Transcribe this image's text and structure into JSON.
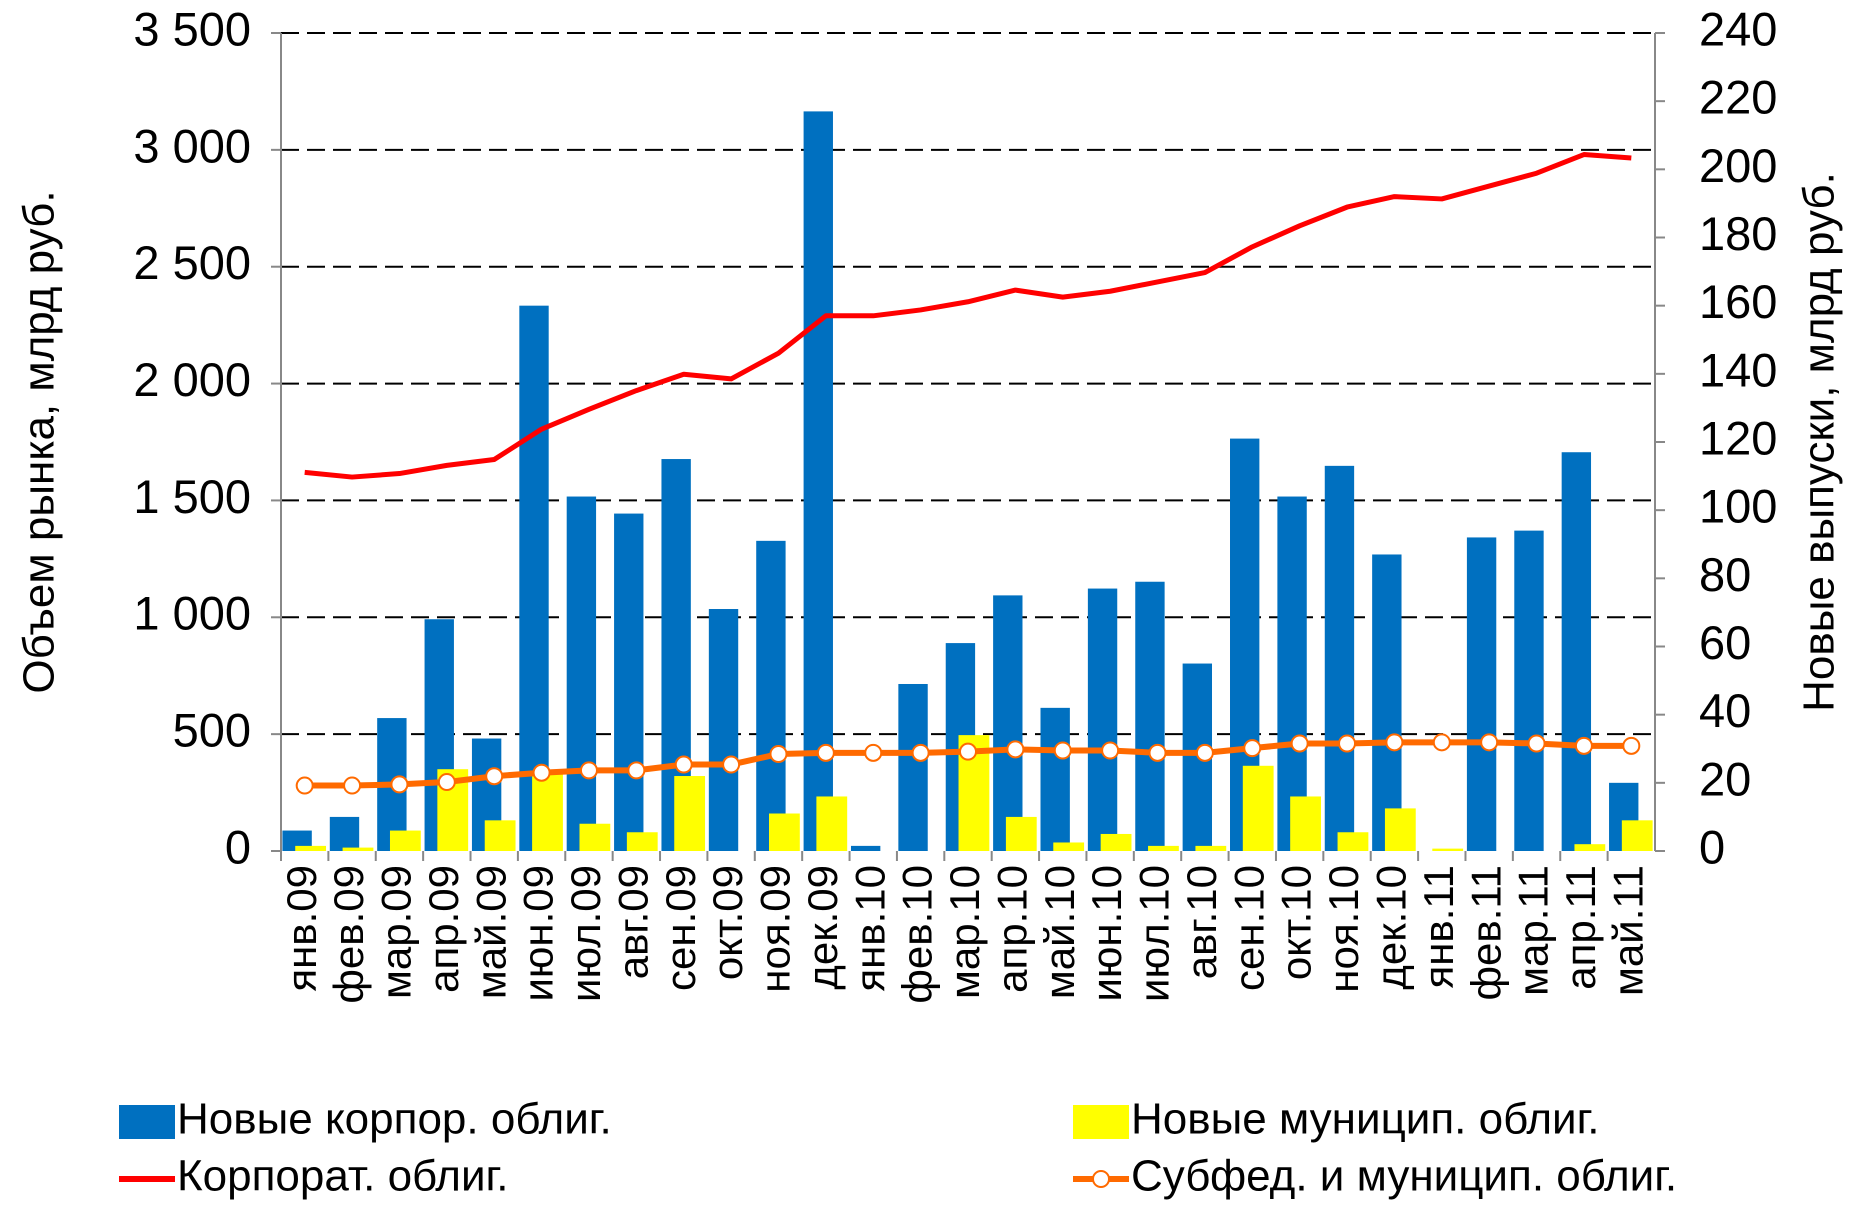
{
  "chart_data": {
    "type": "bar_line",
    "categories": [
      "янв.09",
      "фев.09",
      "мар.09",
      "апр.09",
      "май.09",
      "июн.09",
      "июл.09",
      "авг.09",
      "сен.09",
      "окт.09",
      "ноя.09",
      "дек.09",
      "янв.10",
      "фев.10",
      "мар.10",
      "апр.10",
      "май.10",
      "июн.10",
      "июл.10",
      "авг.10",
      "сен.10",
      "окт.10",
      "ноя.10",
      "дек.10",
      "янв.11",
      "фев.11",
      "мар.11",
      "апр.11",
      "май.11"
    ],
    "y_label": "Объем рынка, млрд руб.",
    "y2_label": "Новые выпуски, млрд руб.",
    "ylim": [
      0,
      3500
    ],
    "yticks": [
      0,
      500,
      {
        "value": 1000,
        "label": "1 000"
      },
      {
        "value": 1500,
        "label": "1 500"
      },
      {
        "value": 2000,
        "label": "2 000"
      },
      {
        "value": 2500,
        "label": "2 500"
      },
      {
        "value": 3000,
        "label": "3 000"
      },
      {
        "value": 3500,
        "label": "3 500"
      }
    ],
    "y2lim": [
      0,
      240
    ],
    "y2ticks": [
      0,
      20,
      40,
      60,
      80,
      100,
      120,
      140,
      160,
      180,
      200,
      220,
      240
    ],
    "grid": true,
    "series": [
      {
        "name": "Новые корпор. облиг.",
        "kind": "bar",
        "axis": "y2",
        "color": "#0070c0",
        "values": [
          6,
          10,
          39,
          68,
          33,
          160,
          104,
          99,
          115,
          71,
          91,
          217,
          1.5,
          49,
          61,
          75,
          42,
          77,
          79,
          55,
          121,
          104,
          113,
          87,
          0,
          92,
          94,
          117,
          20
        ]
      },
      {
        "name": "Новые муницип. облиг.",
        "kind": "bar",
        "axis": "y2",
        "color": "#ffff00",
        "values": [
          1.5,
          1,
          6,
          24,
          9,
          23,
          8,
          5.5,
          22,
          0,
          11,
          16,
          0,
          0,
          34,
          10,
          2.5,
          5,
          1.5,
          1.5,
          25,
          16,
          5.5,
          12.5,
          0.7,
          0,
          0,
          2,
          9
        ]
      },
      {
        "name": "Корпорат. облиг.",
        "kind": "line",
        "axis": "y",
        "color": "#ff0000",
        "values": [
          1620,
          1600,
          1615,
          1650,
          1675,
          1805,
          1890,
          1970,
          2040,
          2020,
          2130,
          2290,
          2290,
          2315,
          2350,
          2400,
          2370,
          2395,
          2435,
          2475,
          2585,
          2675,
          2755,
          2800,
          2790,
          2845,
          2900,
          2980,
          2965
        ]
      },
      {
        "name": "Субфед. и муницип. облиг.",
        "kind": "line_marker",
        "axis": "y",
        "color": "#ff6a00",
        "values": [
          280,
          280,
          285,
          295,
          320,
          335,
          345,
          345,
          370,
          370,
          415,
          420,
          420,
          420,
          425,
          435,
          430,
          430,
          420,
          420,
          440,
          460,
          460,
          465,
          465,
          465,
          460,
          450,
          450
        ]
      }
    ]
  }
}
